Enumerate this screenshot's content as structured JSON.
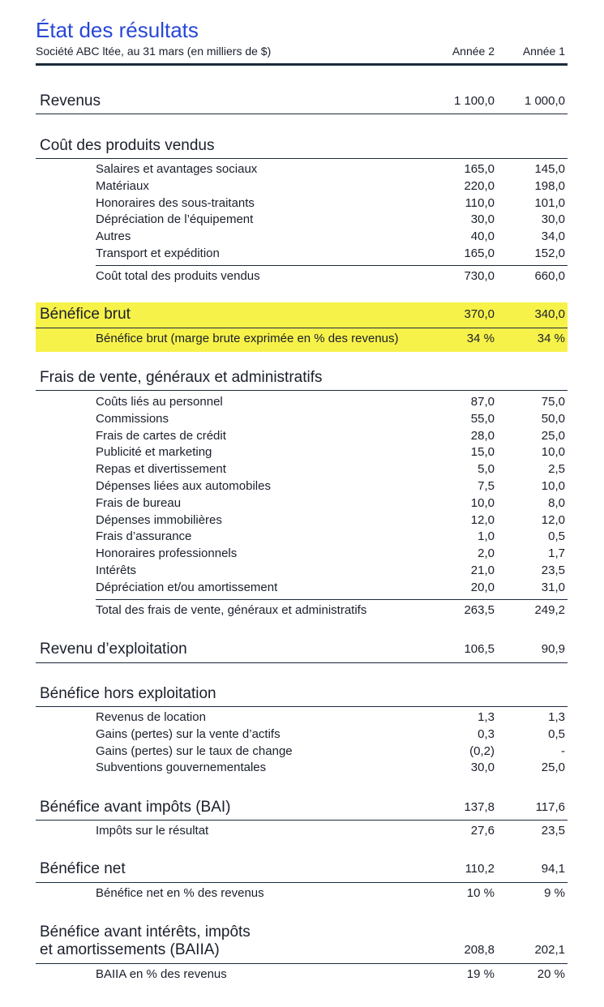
{
  "header": {
    "title": "État des résultats",
    "subtitle": "Société ABC ltée, au 31 mars (en milliers de $)",
    "col_year2": "Année 2",
    "col_year1": "Année 1"
  },
  "highlight_color": "#f7f24a",
  "title_color": "#2747d6",
  "revenus": {
    "label": "Revenus",
    "y2": "1 100,0",
    "y1": "1 000,0"
  },
  "cpv": {
    "label": "Coût des produits vendus",
    "items": [
      {
        "label": "Salaires et avantages sociaux",
        "y2": "165,0",
        "y1": "145,0"
      },
      {
        "label": "Matériaux",
        "y2": "220,0",
        "y1": "198,0"
      },
      {
        "label": "Honoraires des sous-traitants",
        "y2": "110,0",
        "y1": "101,0"
      },
      {
        "label": "Dépréciation de l’équipement",
        "y2": "30,0",
        "y1": "30,0"
      },
      {
        "label": "Autres",
        "y2": "40,0",
        "y1": "34,0"
      },
      {
        "label": "Transport et expédition",
        "y2": "165,0",
        "y1": "152,0"
      }
    ],
    "total": {
      "label": "Coût total des produits vendus",
      "y2": "730,0",
      "y1": "660,0"
    }
  },
  "brut": {
    "label": "Bénéfice brut",
    "y2": "370,0",
    "y1": "340,0",
    "sub": {
      "label": "Bénéfice brut (marge brute exprimée en % des revenus)",
      "y2": "34 %",
      "y1": "34 %"
    }
  },
  "fvga": {
    "label": "Frais de vente, généraux et administratifs",
    "items": [
      {
        "label": "Coûts liés au personnel",
        "y2": "87,0",
        "y1": "75,0"
      },
      {
        "label": "Commissions",
        "y2": "55,0",
        "y1": "50,0"
      },
      {
        "label": "Frais de cartes de crédit",
        "y2": "28,0",
        "y1": "25,0"
      },
      {
        "label": "Publicité et marketing",
        "y2": "15,0",
        "y1": "10,0"
      },
      {
        "label": "Repas et divertissement",
        "y2": "5,0",
        "y1": "2,5"
      },
      {
        "label": "Dépenses liées aux automobiles",
        "y2": "7,5",
        "y1": "10,0"
      },
      {
        "label": "Frais de bureau",
        "y2": "10,0",
        "y1": "8,0"
      },
      {
        "label": "Dépenses immobilières",
        "y2": "12,0",
        "y1": "12,0"
      },
      {
        "label": "Frais d’assurance",
        "y2": "1,0",
        "y1": "0,5"
      },
      {
        "label": "Honoraires professionnels",
        "y2": "2,0",
        "y1": "1,7"
      },
      {
        "label": "Intérêts",
        "y2": "21,0",
        "y1": "23,5"
      },
      {
        "label": "Dépréciation et/ou amortissement",
        "y2": "20,0",
        "y1": "31,0"
      }
    ],
    "total": {
      "label": "Total des frais de vente, généraux et administratifs",
      "y2": "263,5",
      "y1": "249,2"
    }
  },
  "exploitation": {
    "label": "Revenu d’exploitation",
    "y2": "106,5",
    "y1": "90,9"
  },
  "hors": {
    "label": "Bénéfice hors exploitation",
    "items": [
      {
        "label": "Revenus de location",
        "y2": "1,3",
        "y1": "1,3"
      },
      {
        "label": "Gains (pertes) sur la vente d’actifs",
        "y2": "0,3",
        "y1": "0,5"
      },
      {
        "label": "Gains (pertes) sur le taux de change",
        "y2": "(0,2)",
        "y1": "-"
      },
      {
        "label": "Subventions gouvernementales",
        "y2": "30,0",
        "y1": "25,0"
      }
    ]
  },
  "bai": {
    "label": "Bénéfice avant impôts (BAI)",
    "y2": "137,8",
    "y1": "117,6",
    "sub": {
      "label": "Impôts sur le résultat",
      "y2": "27,6",
      "y1": "23,5"
    }
  },
  "net": {
    "label": "Bénéfice net",
    "y2": "110,2",
    "y1": "94,1",
    "sub": {
      "label": "Bénéfice net en % des revenus",
      "y2": "10 %",
      "y1": "9 %"
    }
  },
  "baiia": {
    "label_line1": "Bénéfice avant intérêts, impôts",
    "label_line2": "et amortissements (BAIIA)",
    "y2": "208,8",
    "y1": "202,1",
    "sub": {
      "label": "BAIIA en % des revenus",
      "y2": "19 %",
      "y1": "20 %"
    }
  }
}
